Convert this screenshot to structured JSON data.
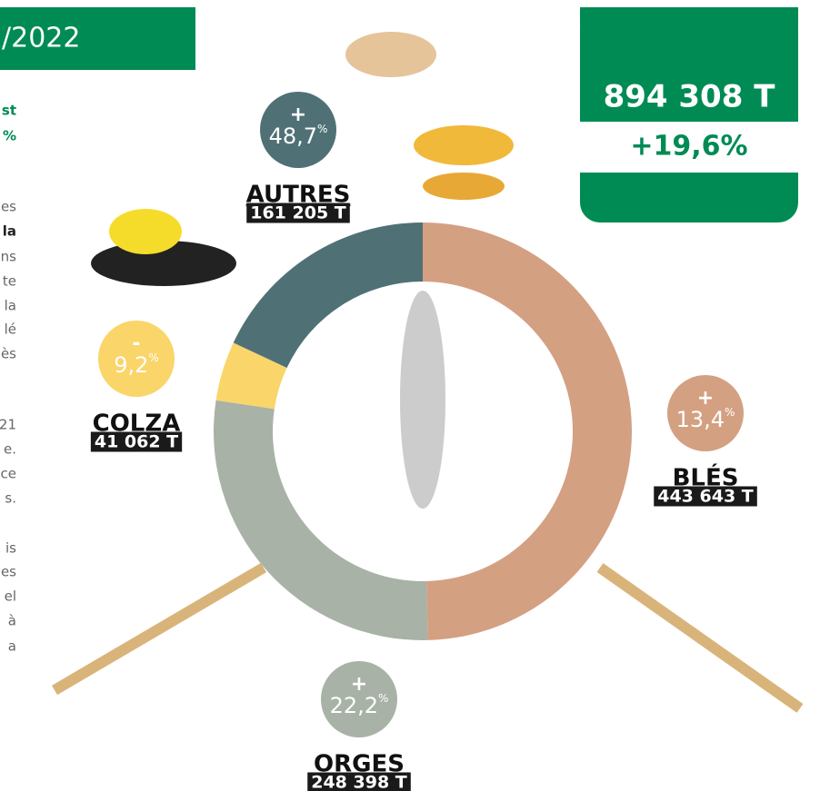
{
  "chart_data": {
    "type": "donut",
    "title": "/2022",
    "total_label": "894 308 T",
    "total_change": "+19,6%",
    "categories": [
      "BLÉS",
      "ORGES",
      "COLZA",
      "AUTRES"
    ],
    "values": [
      443643,
      248398,
      41062,
      161205
    ],
    "value_labels": [
      "443 643 T",
      "248 398 T",
      "41 062 T",
      "161 205 T"
    ],
    "change_signs": [
      "+",
      "+",
      "-",
      "+"
    ],
    "change_values": [
      "13,4",
      "22,2",
      "9,2",
      "48,7"
    ],
    "change_unit": "%",
    "colors": [
      "#d4a082",
      "#a8b2a6",
      "#fad56a",
      "#4f7176"
    ]
  },
  "cropped_text": [
    "st",
    "%",
    "es",
    "la",
    "ns",
    "te",
    "la",
    "lé",
    "ès",
    "21",
    "e.",
    "ce",
    "s.",
    "is",
    "es",
    "el",
    "à",
    "a"
  ]
}
